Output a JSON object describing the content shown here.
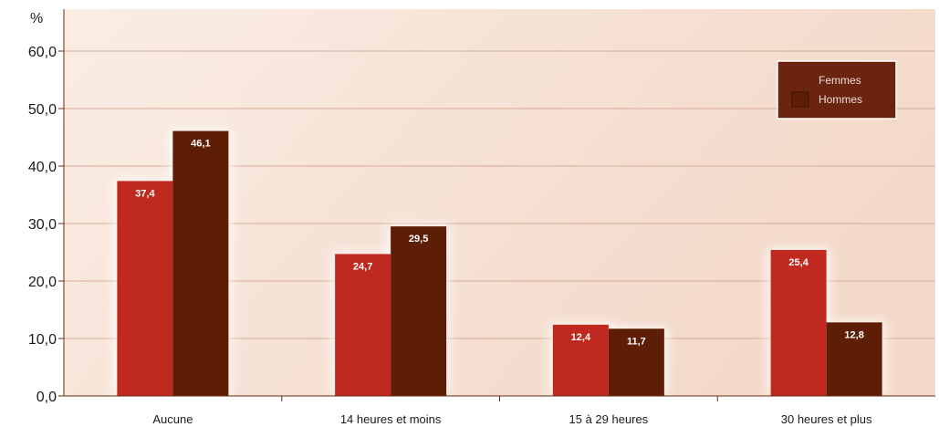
{
  "chart_data": {
    "type": "bar",
    "ylabel": "%",
    "ylim": [
      0,
      60
    ],
    "yticks": [
      "0,0",
      "10,0",
      "20,0",
      "30,0",
      "40,0",
      "50,0",
      "60,0"
    ],
    "categories": [
      "Aucune",
      "14 heures et moins",
      "15 à 29 heures",
      "30 heures et plus"
    ],
    "series": [
      {
        "name": "Femmes",
        "color": "#c0291f",
        "values": [
          37.4,
          24.7,
          12.4,
          25.4
        ],
        "labels": [
          "37,4",
          "24,7",
          "12,4",
          "25,4"
        ]
      },
      {
        "name": "Hommes",
        "color": "#5e1e05",
        "values": [
          46.1,
          29.5,
          11.7,
          12.8
        ],
        "labels": [
          "46,1",
          "29,5",
          "11,7",
          "12,8"
        ]
      }
    ],
    "grid": true,
    "legend_position": "top-right"
  },
  "colors": {
    "background_light": "#f9ece2",
    "background_warm": "#f2d8c8",
    "gridline": "#c89a83",
    "axis": "#6b2a10"
  }
}
